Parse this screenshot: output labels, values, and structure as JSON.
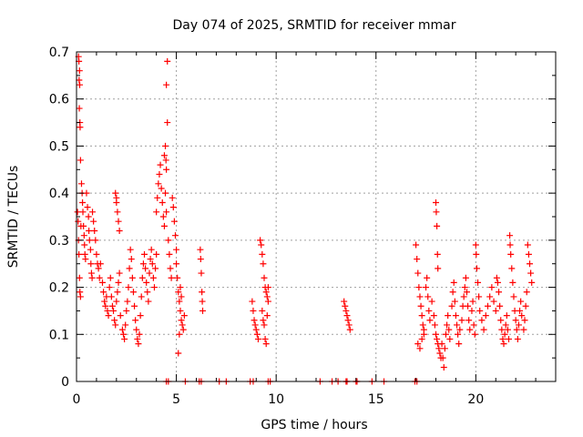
{
  "chart_data": {
    "type": "scatter",
    "title": "Day 074 of 2025, SRMTID for receiver mmar",
    "xlabel": "GPS time / hours",
    "ylabel": "SRMTID / TECUs",
    "xlim": [
      0,
      24
    ],
    "ylim": [
      0,
      0.7
    ],
    "x_ticks": [
      0,
      5,
      10,
      15,
      20
    ],
    "y_ticks": [
      0,
      0.1,
      0.2,
      0.3,
      0.4,
      0.5,
      0.6,
      0.7
    ],
    "x_tick_labels": [
      "0",
      "5",
      "10",
      "15",
      "20"
    ],
    "y_tick_labels": [
      "0",
      "0.1",
      "0.2",
      "0.3",
      "0.4",
      "0.5",
      "0.6",
      "0.7"
    ],
    "grid": true,
    "marker": "plus",
    "color": "#ff0000",
    "series": [
      {
        "points": [
          [
            0.05,
            0.36
          ],
          [
            0.08,
            0.34
          ],
          [
            0.1,
            0.3
          ],
          [
            0.12,
            0.27
          ],
          [
            0.15,
            0.22
          ],
          [
            0.17,
            0.19
          ],
          [
            0.2,
            0.18
          ],
          [
            0.22,
            0.33
          ],
          [
            0.1,
            0.69
          ],
          [
            0.12,
            0.68
          ],
          [
            0.15,
            0.66
          ],
          [
            0.13,
            0.64
          ],
          [
            0.16,
            0.63
          ],
          [
            0.14,
            0.58
          ],
          [
            0.17,
            0.55
          ],
          [
            0.18,
            0.54
          ],
          [
            0.2,
            0.47
          ],
          [
            0.25,
            0.42
          ],
          [
            0.28,
            0.4
          ],
          [
            0.3,
            0.38
          ],
          [
            0.32,
            0.36
          ],
          [
            0.35,
            0.33
          ],
          [
            0.38,
            0.31
          ],
          [
            0.4,
            0.29
          ],
          [
            0.42,
            0.27
          ],
          [
            0.45,
            0.26
          ],
          [
            0.5,
            0.4
          ],
          [
            0.55,
            0.37
          ],
          [
            0.6,
            0.35
          ],
          [
            0.62,
            0.32
          ],
          [
            0.65,
            0.3
          ],
          [
            0.7,
            0.28
          ],
          [
            0.72,
            0.25
          ],
          [
            0.75,
            0.23
          ],
          [
            0.78,
            0.22
          ],
          [
            0.8,
            0.36
          ],
          [
            0.85,
            0.34
          ],
          [
            0.9,
            0.32
          ],
          [
            0.95,
            0.3
          ],
          [
            1.0,
            0.27
          ],
          [
            1.05,
            0.25
          ],
          [
            1.1,
            0.24
          ],
          [
            1.15,
            0.22
          ],
          [
            1.2,
            0.25
          ],
          [
            1.3,
            0.21
          ],
          [
            1.35,
            0.19
          ],
          [
            1.4,
            0.17
          ],
          [
            1.45,
            0.16
          ],
          [
            1.5,
            0.18
          ],
          [
            1.55,
            0.15
          ],
          [
            1.6,
            0.14
          ],
          [
            1.65,
            0.2
          ],
          [
            1.7,
            0.22
          ],
          [
            1.75,
            0.18
          ],
          [
            1.8,
            0.16
          ],
          [
            1.85,
            0.15
          ],
          [
            1.9,
            0.13
          ],
          [
            1.95,
            0.12
          ],
          [
            2.0,
            0.17
          ],
          [
            2.05,
            0.19
          ],
          [
            2.1,
            0.21
          ],
          [
            2.15,
            0.23
          ],
          [
            1.95,
            0.4
          ],
          [
            2.0,
            0.39
          ],
          [
            2.05,
            0.36
          ],
          [
            2.1,
            0.34
          ],
          [
            2.15,
            0.32
          ],
          [
            2.0,
            0.38
          ],
          [
            2.2,
            0.14
          ],
          [
            2.3,
            0.11
          ],
          [
            2.35,
            0.1
          ],
          [
            2.4,
            0.09
          ],
          [
            2.45,
            0.12
          ],
          [
            2.5,
            0.15
          ],
          [
            2.55,
            0.17
          ],
          [
            2.6,
            0.2
          ],
          [
            2.65,
            0.24
          ],
          [
            2.7,
            0.28
          ],
          [
            2.75,
            0.26
          ],
          [
            2.8,
            0.22
          ],
          [
            2.85,
            0.19
          ],
          [
            2.9,
            0.16
          ],
          [
            2.95,
            0.13
          ],
          [
            3.0,
            0.11
          ],
          [
            3.05,
            0.09
          ],
          [
            3.1,
            0.08
          ],
          [
            3.15,
            0.1
          ],
          [
            3.2,
            0.14
          ],
          [
            3.25,
            0.18
          ],
          [
            3.3,
            0.22
          ],
          [
            3.35,
            0.25
          ],
          [
            3.4,
            0.27
          ],
          [
            3.45,
            0.24
          ],
          [
            3.5,
            0.21
          ],
          [
            3.55,
            0.19
          ],
          [
            3.6,
            0.17
          ],
          [
            3.65,
            0.23
          ],
          [
            3.7,
            0.26
          ],
          [
            3.75,
            0.28
          ],
          [
            3.8,
            0.25
          ],
          [
            3.85,
            0.22
          ],
          [
            3.9,
            0.2
          ],
          [
            3.95,
            0.24
          ],
          [
            4.0,
            0.27
          ],
          [
            4.0,
            0.36
          ],
          [
            4.05,
            0.39
          ],
          [
            4.1,
            0.42
          ],
          [
            4.15,
            0.44
          ],
          [
            4.2,
            0.46
          ],
          [
            4.25,
            0.41
          ],
          [
            4.3,
            0.38
          ],
          [
            4.35,
            0.35
          ],
          [
            4.4,
            0.33
          ],
          [
            4.4,
            0.48
          ],
          [
            4.45,
            0.5
          ],
          [
            4.48,
            0.47
          ],
          [
            4.5,
            0.45
          ],
          [
            4.45,
            0.4
          ],
          [
            4.5,
            0.36
          ],
          [
            4.55,
            0.68
          ],
          [
            4.5,
            0.63
          ],
          [
            4.55,
            0.55
          ],
          [
            4.6,
            0.3
          ],
          [
            4.65,
            0.27
          ],
          [
            4.7,
            0.24
          ],
          [
            4.75,
            0.22
          ],
          [
            4.8,
            0.39
          ],
          [
            4.85,
            0.37
          ],
          [
            4.9,
            0.34
          ],
          [
            4.95,
            0.31
          ],
          [
            5.0,
            0.28
          ],
          [
            5.0,
            0.25
          ],
          [
            5.05,
            0.22
          ],
          [
            5.1,
            0.19
          ],
          [
            5.15,
            0.17
          ],
          [
            5.2,
            0.15
          ],
          [
            5.25,
            0.13
          ],
          [
            5.3,
            0.12
          ],
          [
            5.35,
            0.11
          ],
          [
            5.4,
            0.14
          ],
          [
            5.1,
            0.06
          ],
          [
            5.15,
            0.1
          ],
          [
            5.2,
            0.2
          ],
          [
            5.25,
            0.18
          ],
          [
            6.2,
            0.28
          ],
          [
            6.22,
            0.26
          ],
          [
            6.25,
            0.23
          ],
          [
            6.28,
            0.19
          ],
          [
            6.3,
            0.17
          ],
          [
            6.32,
            0.15
          ],
          [
            8.8,
            0.17
          ],
          [
            8.85,
            0.15
          ],
          [
            8.9,
            0.13
          ],
          [
            8.95,
            0.12
          ],
          [
            9.0,
            0.11
          ],
          [
            9.05,
            0.1
          ],
          [
            9.1,
            0.09
          ],
          [
            9.2,
            0.3
          ],
          [
            9.25,
            0.29
          ],
          [
            9.3,
            0.27
          ],
          [
            9.35,
            0.25
          ],
          [
            9.4,
            0.22
          ],
          [
            9.45,
            0.2
          ],
          [
            9.5,
            0.19
          ],
          [
            9.55,
            0.18
          ],
          [
            9.6,
            0.17
          ],
          [
            9.3,
            0.15
          ],
          [
            9.35,
            0.13
          ],
          [
            9.4,
            0.12
          ],
          [
            9.45,
            0.09
          ],
          [
            9.5,
            0.08
          ],
          [
            9.55,
            0.14
          ],
          [
            9.6,
            0.2
          ],
          [
            13.4,
            0.17
          ],
          [
            13.45,
            0.16
          ],
          [
            13.5,
            0.15
          ],
          [
            13.55,
            0.14
          ],
          [
            13.6,
            0.13
          ],
          [
            13.65,
            0.12
          ],
          [
            13.7,
            0.11
          ],
          [
            17.0,
            0.29
          ],
          [
            17.05,
            0.26
          ],
          [
            17.1,
            0.23
          ],
          [
            17.15,
            0.2
          ],
          [
            17.2,
            0.18
          ],
          [
            17.25,
            0.16
          ],
          [
            17.3,
            0.14
          ],
          [
            17.35,
            0.12
          ],
          [
            17.4,
            0.1
          ],
          [
            17.1,
            0.08
          ],
          [
            17.2,
            0.07
          ],
          [
            17.3,
            0.09
          ],
          [
            17.4,
            0.11
          ],
          [
            17.5,
            0.2
          ],
          [
            17.55,
            0.22
          ],
          [
            17.6,
            0.18
          ],
          [
            17.65,
            0.15
          ],
          [
            17.7,
            0.13
          ],
          [
            17.8,
            0.17
          ],
          [
            17.9,
            0.14
          ],
          [
            17.95,
            0.12
          ],
          [
            18.0,
            0.1
          ],
          [
            18.05,
            0.09
          ],
          [
            18.1,
            0.08
          ],
          [
            18.15,
            0.07
          ],
          [
            18.2,
            0.06
          ],
          [
            18.25,
            0.05
          ],
          [
            18.0,
            0.38
          ],
          [
            18.02,
            0.36
          ],
          [
            18.05,
            0.33
          ],
          [
            18.08,
            0.27
          ],
          [
            18.1,
            0.24
          ],
          [
            18.3,
            0.08
          ],
          [
            18.35,
            0.05
          ],
          [
            18.4,
            0.03
          ],
          [
            18.45,
            0.07
          ],
          [
            18.5,
            0.1
          ],
          [
            18.55,
            0.12
          ],
          [
            18.6,
            0.14
          ],
          [
            18.65,
            0.11
          ],
          [
            18.7,
            0.09
          ],
          [
            18.8,
            0.16
          ],
          [
            18.85,
            0.19
          ],
          [
            18.9,
            0.21
          ],
          [
            18.95,
            0.17
          ],
          [
            19.0,
            0.14
          ],
          [
            19.05,
            0.12
          ],
          [
            19.1,
            0.1
          ],
          [
            19.15,
            0.08
          ],
          [
            19.2,
            0.11
          ],
          [
            19.3,
            0.13
          ],
          [
            19.35,
            0.16
          ],
          [
            19.4,
            0.18
          ],
          [
            19.45,
            0.2
          ],
          [
            19.5,
            0.22
          ],
          [
            19.55,
            0.19
          ],
          [
            19.6,
            0.16
          ],
          [
            19.65,
            0.13
          ],
          [
            19.7,
            0.11
          ],
          [
            19.8,
            0.15
          ],
          [
            19.85,
            0.17
          ],
          [
            19.9,
            0.12
          ],
          [
            19.95,
            0.1
          ],
          [
            20.0,
            0.29
          ],
          [
            20.02,
            0.27
          ],
          [
            20.05,
            0.24
          ],
          [
            20.1,
            0.21
          ],
          [
            20.15,
            0.18
          ],
          [
            20.2,
            0.15
          ],
          [
            20.3,
            0.13
          ],
          [
            20.4,
            0.11
          ],
          [
            20.5,
            0.14
          ],
          [
            20.6,
            0.16
          ],
          [
            20.7,
            0.18
          ],
          [
            20.8,
            0.2
          ],
          [
            20.9,
            0.17
          ],
          [
            21.0,
            0.15
          ],
          [
            21.05,
            0.22
          ],
          [
            21.1,
            0.21
          ],
          [
            21.15,
            0.19
          ],
          [
            21.2,
            0.16
          ],
          [
            21.25,
            0.13
          ],
          [
            21.3,
            0.11
          ],
          [
            21.35,
            0.09
          ],
          [
            21.4,
            0.08
          ],
          [
            21.45,
            0.1
          ],
          [
            21.5,
            0.12
          ],
          [
            21.55,
            0.14
          ],
          [
            21.6,
            0.11
          ],
          [
            21.65,
            0.09
          ],
          [
            21.7,
            0.31
          ],
          [
            21.72,
            0.29
          ],
          [
            21.75,
            0.27
          ],
          [
            21.8,
            0.24
          ],
          [
            21.85,
            0.21
          ],
          [
            21.9,
            0.18
          ],
          [
            21.95,
            0.15
          ],
          [
            22.0,
            0.13
          ],
          [
            22.05,
            0.11
          ],
          [
            22.1,
            0.09
          ],
          [
            22.15,
            0.12
          ],
          [
            22.2,
            0.15
          ],
          [
            22.25,
            0.17
          ],
          [
            22.3,
            0.14
          ],
          [
            22.4,
            0.11
          ],
          [
            22.45,
            0.13
          ],
          [
            22.5,
            0.16
          ],
          [
            22.55,
            0.19
          ],
          [
            22.6,
            0.29
          ],
          [
            22.65,
            0.27
          ],
          [
            22.7,
            0.25
          ],
          [
            22.75,
            0.23
          ],
          [
            22.8,
            0.21
          ]
        ]
      },
      {
        "points": [
          [
            4.5,
            0
          ],
          [
            4.6,
            0
          ],
          [
            5.45,
            0
          ],
          [
            6.15,
            0
          ],
          [
            6.25,
            0
          ],
          [
            7.15,
            0
          ],
          [
            7.5,
            0
          ],
          [
            8.7,
            0
          ],
          [
            8.85,
            0
          ],
          [
            9.6,
            0
          ],
          [
            9.7,
            0
          ],
          [
            12.2,
            0
          ],
          [
            12.8,
            0
          ],
          [
            13.1,
            0
          ],
          [
            13.5,
            0
          ],
          [
            13.55,
            0
          ],
          [
            14.0,
            0
          ],
          [
            14.05,
            0
          ],
          [
            14.8,
            0
          ],
          [
            15.4,
            0
          ],
          [
            16.95,
            0
          ],
          [
            17.05,
            0
          ]
        ]
      }
    ]
  }
}
